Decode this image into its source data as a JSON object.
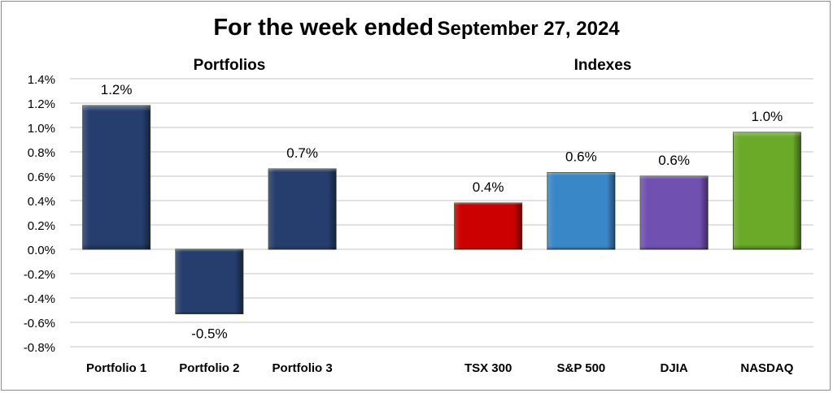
{
  "title": {
    "main": "For the week ended",
    "date": "September 27, 2024"
  },
  "groups": {
    "portfolios": "Portfolios",
    "indexes": "Indexes"
  },
  "chart_data": {
    "type": "bar",
    "title": "For the week ended September 27, 2024",
    "categories": [
      "Portfolio 1",
      "Portfolio 2",
      "Portfolio 3",
      "TSX 300",
      "S&P 500",
      "DJIA",
      "NASDAQ"
    ],
    "values": [
      1.18,
      -0.53,
      0.66,
      0.38,
      0.63,
      0.6,
      0.96
    ],
    "data_labels": [
      "1.2%",
      "-0.5%",
      "0.7%",
      "0.4%",
      "0.6%",
      "0.6%",
      "1.0%"
    ],
    "colors": [
      "#263e6e",
      "#263e6e",
      "#263e6e",
      "#cc0000",
      "#3a87c8",
      "#7050b0",
      "#6aaa28"
    ],
    "ylim": [
      -0.8,
      1.4
    ],
    "yticks": [
      "-0.8%",
      "-0.6%",
      "-0.4%",
      "-0.2%",
      "0.0%",
      "0.2%",
      "0.4%",
      "0.6%",
      "0.8%",
      "1.0%",
      "1.2%",
      "1.4%"
    ],
    "xlabel": "",
    "ylabel": "",
    "grid": true,
    "legend": "none"
  }
}
